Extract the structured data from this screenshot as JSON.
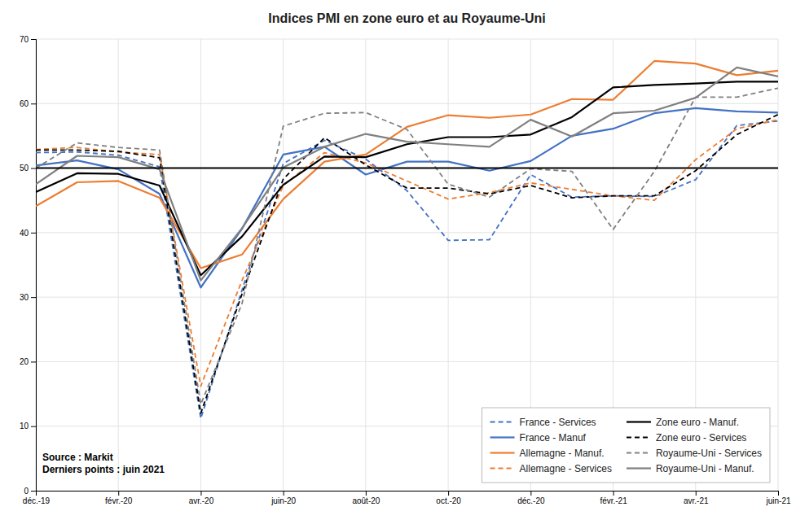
{
  "chart_data": {
    "type": "line",
    "title": "Indices PMI en zone euro et au Royaume-Uni",
    "categories": [
      "déc.-19",
      null,
      "févr.-20",
      null,
      "avr.-20",
      null,
      "juin-20",
      null,
      "août-20",
      null,
      "oct.-20",
      null,
      "déc.-20",
      null,
      "févr.-21",
      null,
      "avr.-21",
      null,
      "juin-21"
    ],
    "series": [
      {
        "name": "France - Services",
        "color": "#4472C4",
        "line_style": "dashed",
        "values": [
          52.4,
          52.5,
          52.0,
          50.2,
          11.2,
          31.1,
          50.7,
          54.3,
          51.4,
          46.5,
          38.8,
          38.9,
          49.0,
          45.5,
          45.7,
          45.6,
          48.2,
          56.6,
          57.3
        ]
      },
      {
        "name": "France - Manuf",
        "color": "#4472C4",
        "line_style": "solid",
        "values": [
          50.4,
          51.2,
          49.8,
          46.0,
          31.5,
          40.6,
          52.1,
          53.3,
          49.0,
          51.0,
          51.0,
          49.6,
          51.1,
          55.0,
          56.1,
          58.5,
          59.3,
          58.8,
          58.6
        ]
      },
      {
        "name": "Allemagne - Manuf.",
        "color": "#ED7D31",
        "line_style": "solid",
        "values": [
          44.1,
          47.8,
          48.0,
          45.4,
          34.5,
          36.6,
          45.2,
          51.0,
          52.1,
          56.4,
          58.2,
          57.8,
          58.3,
          60.7,
          60.6,
          66.6,
          66.2,
          64.4,
          65.1
        ]
      },
      {
        "name": "Allemagne - Services",
        "color": "#ED7D31",
        "line_style": "dashed",
        "values": [
          52.9,
          53.2,
          52.5,
          52.1,
          16.2,
          32.6,
          47.3,
          52.4,
          50.8,
          48.0,
          45.2,
          46.2,
          47.7,
          46.7,
          45.7,
          45.0,
          51.3,
          56.1,
          57.5
        ]
      },
      {
        "name": "Zone euro - Manuf.",
        "color": "#000000",
        "line_style": "solid",
        "values": [
          46.3,
          49.2,
          49.1,
          47.3,
          33.4,
          39.4,
          47.4,
          51.8,
          51.7,
          53.7,
          54.8,
          54.8,
          55.2,
          57.9,
          62.5,
          62.9,
          63.1,
          63.4,
          63.4
        ]
      },
      {
        "name": "Zone euro - Services",
        "color": "#000000",
        "line_style": "dashed",
        "values": [
          52.8,
          52.8,
          52.6,
          51.6,
          12.0,
          30.5,
          48.3,
          54.7,
          50.5,
          46.9,
          46.9,
          46.0,
          47.3,
          45.4,
          45.7,
          45.7,
          49.6,
          55.2,
          58.3
        ]
      },
      {
        "name": "Royaume-Uni - Services",
        "color": "#808080",
        "line_style": "dashed",
        "values": [
          50.0,
          53.9,
          53.2,
          52.8,
          13.4,
          29.0,
          56.5,
          58.5,
          58.6,
          56.0,
          47.5,
          45.5,
          49.9,
          49.5,
          40.5,
          49.5,
          61.0,
          61.0,
          62.4
        ]
      },
      {
        "name": "Royaume-Uni - Manuf.",
        "color": "#808080",
        "line_style": "solid",
        "values": [
          47.5,
          51.9,
          51.7,
          49.8,
          32.6,
          40.7,
          50.1,
          53.3,
          55.3,
          54.1,
          53.7,
          53.3,
          57.5,
          54.9,
          58.5,
          58.9,
          60.9,
          65.6,
          64.2
        ]
      }
    ],
    "hline": 50,
    "ylim": [
      0,
      70
    ],
    "yticks": [
      0,
      10,
      20,
      30,
      40,
      50,
      60,
      70
    ],
    "grid": true,
    "legend": "lower right",
    "annotations": [
      "Source : Markit",
      "Derniers points : juin 2021"
    ]
  }
}
